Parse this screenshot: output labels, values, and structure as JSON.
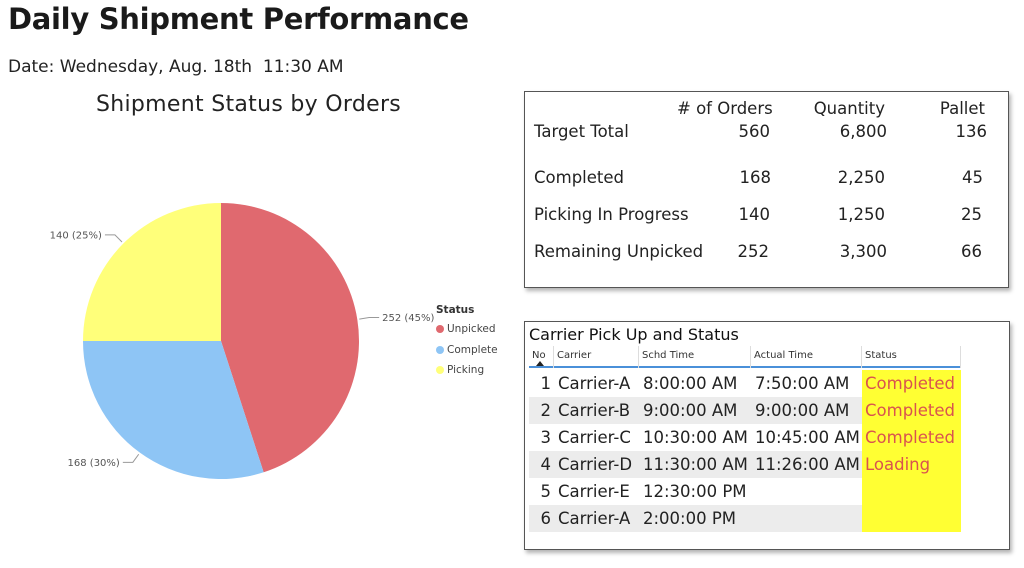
{
  "header": {
    "title": "Daily Shipment Performance",
    "date_line": "Date: Wednesday, Aug. 18th  11:30 AM"
  },
  "chart_data": {
    "type": "pie",
    "title": "Shipment Status by Orders",
    "legend_title": "Status",
    "legend_position": "right",
    "slices": [
      {
        "label": "Unpicked",
        "value": 252,
        "data_label": "252 (45%)",
        "color": "#e0696f"
      },
      {
        "label": "Complete",
        "value": 168,
        "data_label": "168 (30%)",
        "color": "#8ec5f5"
      },
      {
        "label": "Picking",
        "value": 140,
        "data_label": "140 (25%)",
        "color": "#ffff7a"
      }
    ]
  },
  "kpi": {
    "columns": [
      "# of Orders",
      "Quantity",
      "Pallet"
    ],
    "rows": [
      {
        "label": "Target Total",
        "orders": "560",
        "quantity": "6,800",
        "pallet": "136"
      },
      {
        "label": "Completed",
        "orders": "168",
        "quantity": "2,250",
        "pallet": "45"
      },
      {
        "label": "Picking In Progress",
        "orders": "140",
        "quantity": "1,250",
        "pallet": "25"
      },
      {
        "label": "Remaining Unpicked",
        "orders": "252",
        "quantity": "3,300",
        "pallet": "66"
      }
    ]
  },
  "carrier": {
    "title": "Carrier Pick Up and Status",
    "headers": {
      "no": "No",
      "carrier": "Carrier",
      "schd": "Schd Time",
      "actual": "Actual Time",
      "status": "Status"
    },
    "status_bg": "#ffff33",
    "status_color": "#d9534f",
    "rows": [
      {
        "no": "1",
        "carrier": "Carrier-A",
        "schd": "8:00:00 AM",
        "actual": "7:50:00 AM",
        "status": "Completed"
      },
      {
        "no": "2",
        "carrier": "Carrier-B",
        "schd": "9:00:00 AM",
        "actual": "9:00:00 AM",
        "status": "Completed"
      },
      {
        "no": "3",
        "carrier": "Carrier-C",
        "schd": "10:30:00 AM",
        "actual": "10:45:00 AM",
        "status": "Completed"
      },
      {
        "no": "4",
        "carrier": "Carrier-D",
        "schd": "11:30:00 AM",
        "actual": "11:26:00 AM",
        "status": "Loading"
      },
      {
        "no": "5",
        "carrier": "Carrier-E",
        "schd": "12:30:00 PM",
        "actual": "",
        "status": ""
      },
      {
        "no": "6",
        "carrier": "Carrier-A",
        "schd": "2:00:00 PM",
        "actual": "",
        "status": ""
      }
    ]
  }
}
